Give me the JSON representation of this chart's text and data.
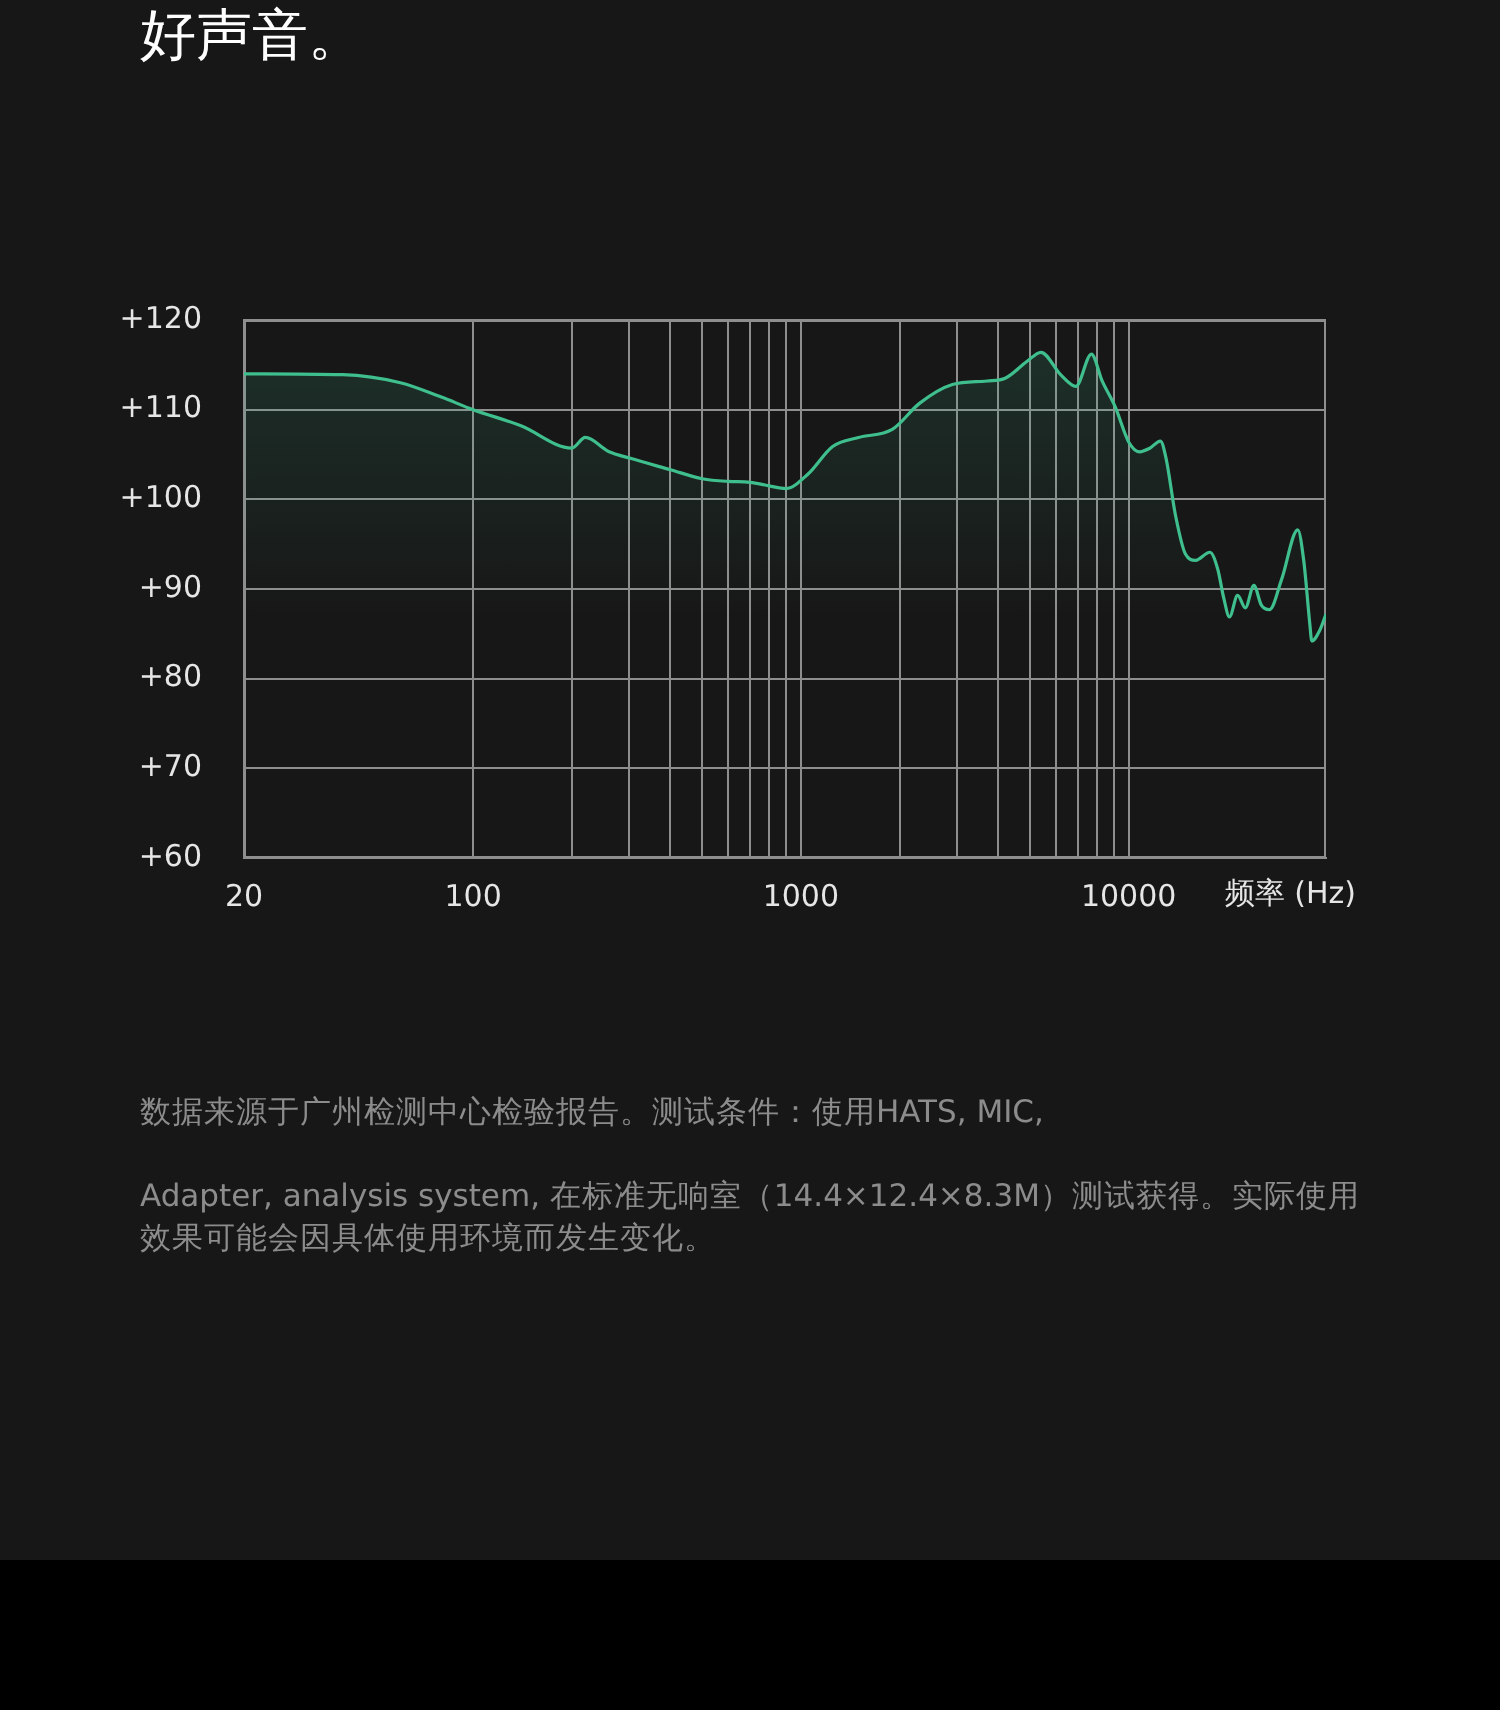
{
  "chart_data": {
    "type": "area",
    "title": "好声音。",
    "xlabel": "频率 (Hz)",
    "x": [
      20,
      40,
      60,
      80,
      100,
      140,
      200,
      220,
      260,
      300,
      400,
      500,
      600,
      700,
      800,
      900,
      1050,
      1250,
      1500,
      1900,
      2300,
      2900,
      3700,
      4200,
      4900,
      5400,
      6200,
      6900,
      7700,
      8300,
      9100,
      10000,
      10800,
      11600,
      12500,
      13000,
      13900,
      14900,
      16000,
      17700,
      18700,
      19500,
      20300,
      21500,
      22700,
      24100,
      25400,
      26900,
      29300,
      32800,
      34200,
      35700,
      36200,
      38300,
      40000
    ],
    "series": [
      {
        "color": "#3fbf8e",
        "values": [
          114.0,
          113.9,
          113.0,
          111.4,
          110.0,
          108.2,
          105.7,
          106.9,
          105.3,
          104.6,
          103.3,
          102.3,
          102.0,
          101.9,
          101.5,
          101.2,
          102.8,
          105.9,
          106.9,
          107.8,
          110.7,
          112.8,
          113.2,
          113.5,
          115.4,
          116.4,
          113.9,
          112.6,
          116.2,
          113.2,
          110.3,
          106.4,
          105.3,
          105.7,
          106.5,
          104.6,
          98.2,
          93.9,
          93.2,
          94.1,
          92.2,
          89.0,
          86.9,
          89.3,
          87.9,
          90.4,
          88.2,
          87.7,
          91.1,
          96.6,
          93.2,
          86.1,
          84.2,
          85.4,
          87.2
        ]
      }
    ],
    "xlim": [
      20,
      40000
    ],
    "xticks": [
      20,
      100,
      {
        "value": 200,
        "label": null
      },
      {
        "value": 300,
        "label": null
      },
      {
        "value": 400,
        "label": null
      },
      {
        "value": 500,
        "label": null
      },
      {
        "value": 600,
        "label": null
      },
      {
        "value": 700,
        "label": null
      },
      {
        "value": 800,
        "label": null
      },
      {
        "value": 900,
        "label": null
      },
      1000,
      {
        "value": 2000,
        "label": null
      },
      {
        "value": 3000,
        "label": null
      },
      {
        "value": 4000,
        "label": null
      },
      {
        "value": 5000,
        "label": null
      },
      {
        "value": 6000,
        "label": null
      },
      {
        "value": 7000,
        "label": null
      },
      {
        "value": 8000,
        "label": null
      },
      {
        "value": 9000,
        "label": null
      },
      10000
    ],
    "ylim": [
      60,
      120
    ],
    "yticks": [
      {
        "value": 60,
        "label": "+60"
      },
      {
        "value": 70,
        "label": "+70"
      },
      {
        "value": 80,
        "label": "+80"
      },
      {
        "value": 90,
        "label": "+90"
      },
      {
        "value": 100,
        "label": "+100"
      },
      {
        "value": 110,
        "label": "+110"
      },
      {
        "value": 120,
        "label": "+120"
      }
    ],
    "log": "x",
    "grid": true,
    "annotations": [
      "数据来源于广州检测中心检验报告。测试条件：使用HATS, MIC,",
      "Adapter, analysis system, 在标准无响室（14.4×12.4×8.3M）测试获得。实际使用效果可能会因具体使用环境而发生变化。"
    ]
  }
}
